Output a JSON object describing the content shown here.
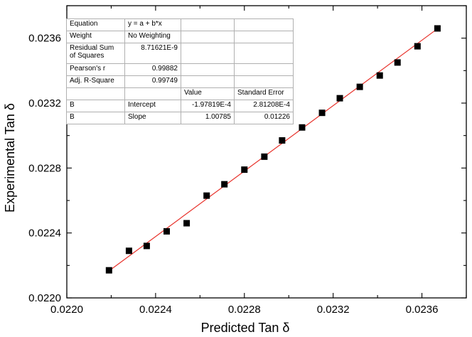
{
  "chart_data": {
    "type": "scatter",
    "title": "",
    "xlabel": "Predicted Tan δ",
    "ylabel": "Experimental Tan δ",
    "xlim": [
      0.022,
      0.0238
    ],
    "ylim": [
      0.022,
      0.0238
    ],
    "xticks": [
      "0.0220",
      "0.0224",
      "0.0228",
      "0.0232",
      "0.0236"
    ],
    "yticks": [
      "0.0220",
      "0.0224",
      "0.0228",
      "0.0232",
      "0.0236"
    ],
    "marker_color": "#000000",
    "fit_line_color": "#e8322b",
    "points": [
      {
        "x": 0.02219,
        "y": 0.02217
      },
      {
        "x": 0.02228,
        "y": 0.02229
      },
      {
        "x": 0.02236,
        "y": 0.02232
      },
      {
        "x": 0.02245,
        "y": 0.02241
      },
      {
        "x": 0.02254,
        "y": 0.02246
      },
      {
        "x": 0.02263,
        "y": 0.02263
      },
      {
        "x": 0.02271,
        "y": 0.0227
      },
      {
        "x": 0.0228,
        "y": 0.02279
      },
      {
        "x": 0.02289,
        "y": 0.02287
      },
      {
        "x": 0.02297,
        "y": 0.02297
      },
      {
        "x": 0.02306,
        "y": 0.02305
      },
      {
        "x": 0.02315,
        "y": 0.02314
      },
      {
        "x": 0.02323,
        "y": 0.02323
      },
      {
        "x": 0.02332,
        "y": 0.0233
      },
      {
        "x": 0.02341,
        "y": 0.02337
      },
      {
        "x": 0.02349,
        "y": 0.02345
      },
      {
        "x": 0.02358,
        "y": 0.02355
      },
      {
        "x": 0.02367,
        "y": 0.02366
      }
    ],
    "fit_line": {
      "x": [
        0.02219,
        0.02367
      ],
      "intercept": -0.000197819,
      "slope": 1.00785
    }
  },
  "fit_table": {
    "equation_label": "Equation",
    "equation_value": "y = a + b*x",
    "weight_label": "Weight",
    "weight_value": "No Weighting",
    "rss_label": "Residual Sum of Squares",
    "rss_value": "8.71621E-9",
    "pearson_label": "Pearson's r",
    "pearson_value": "0.99882",
    "adjr2_label": "Adj. R-Square",
    "adjr2_value": "0.99749",
    "value_header": "Value",
    "stderr_header": "Standard Error",
    "rows": [
      {
        "param": "B",
        "name": "Intercept",
        "value": "-1.97819E-4",
        "stderr": "2.81208E-4"
      },
      {
        "param": "B",
        "name": "Slope",
        "value": "1.00785",
        "stderr": "0.01226"
      }
    ]
  }
}
